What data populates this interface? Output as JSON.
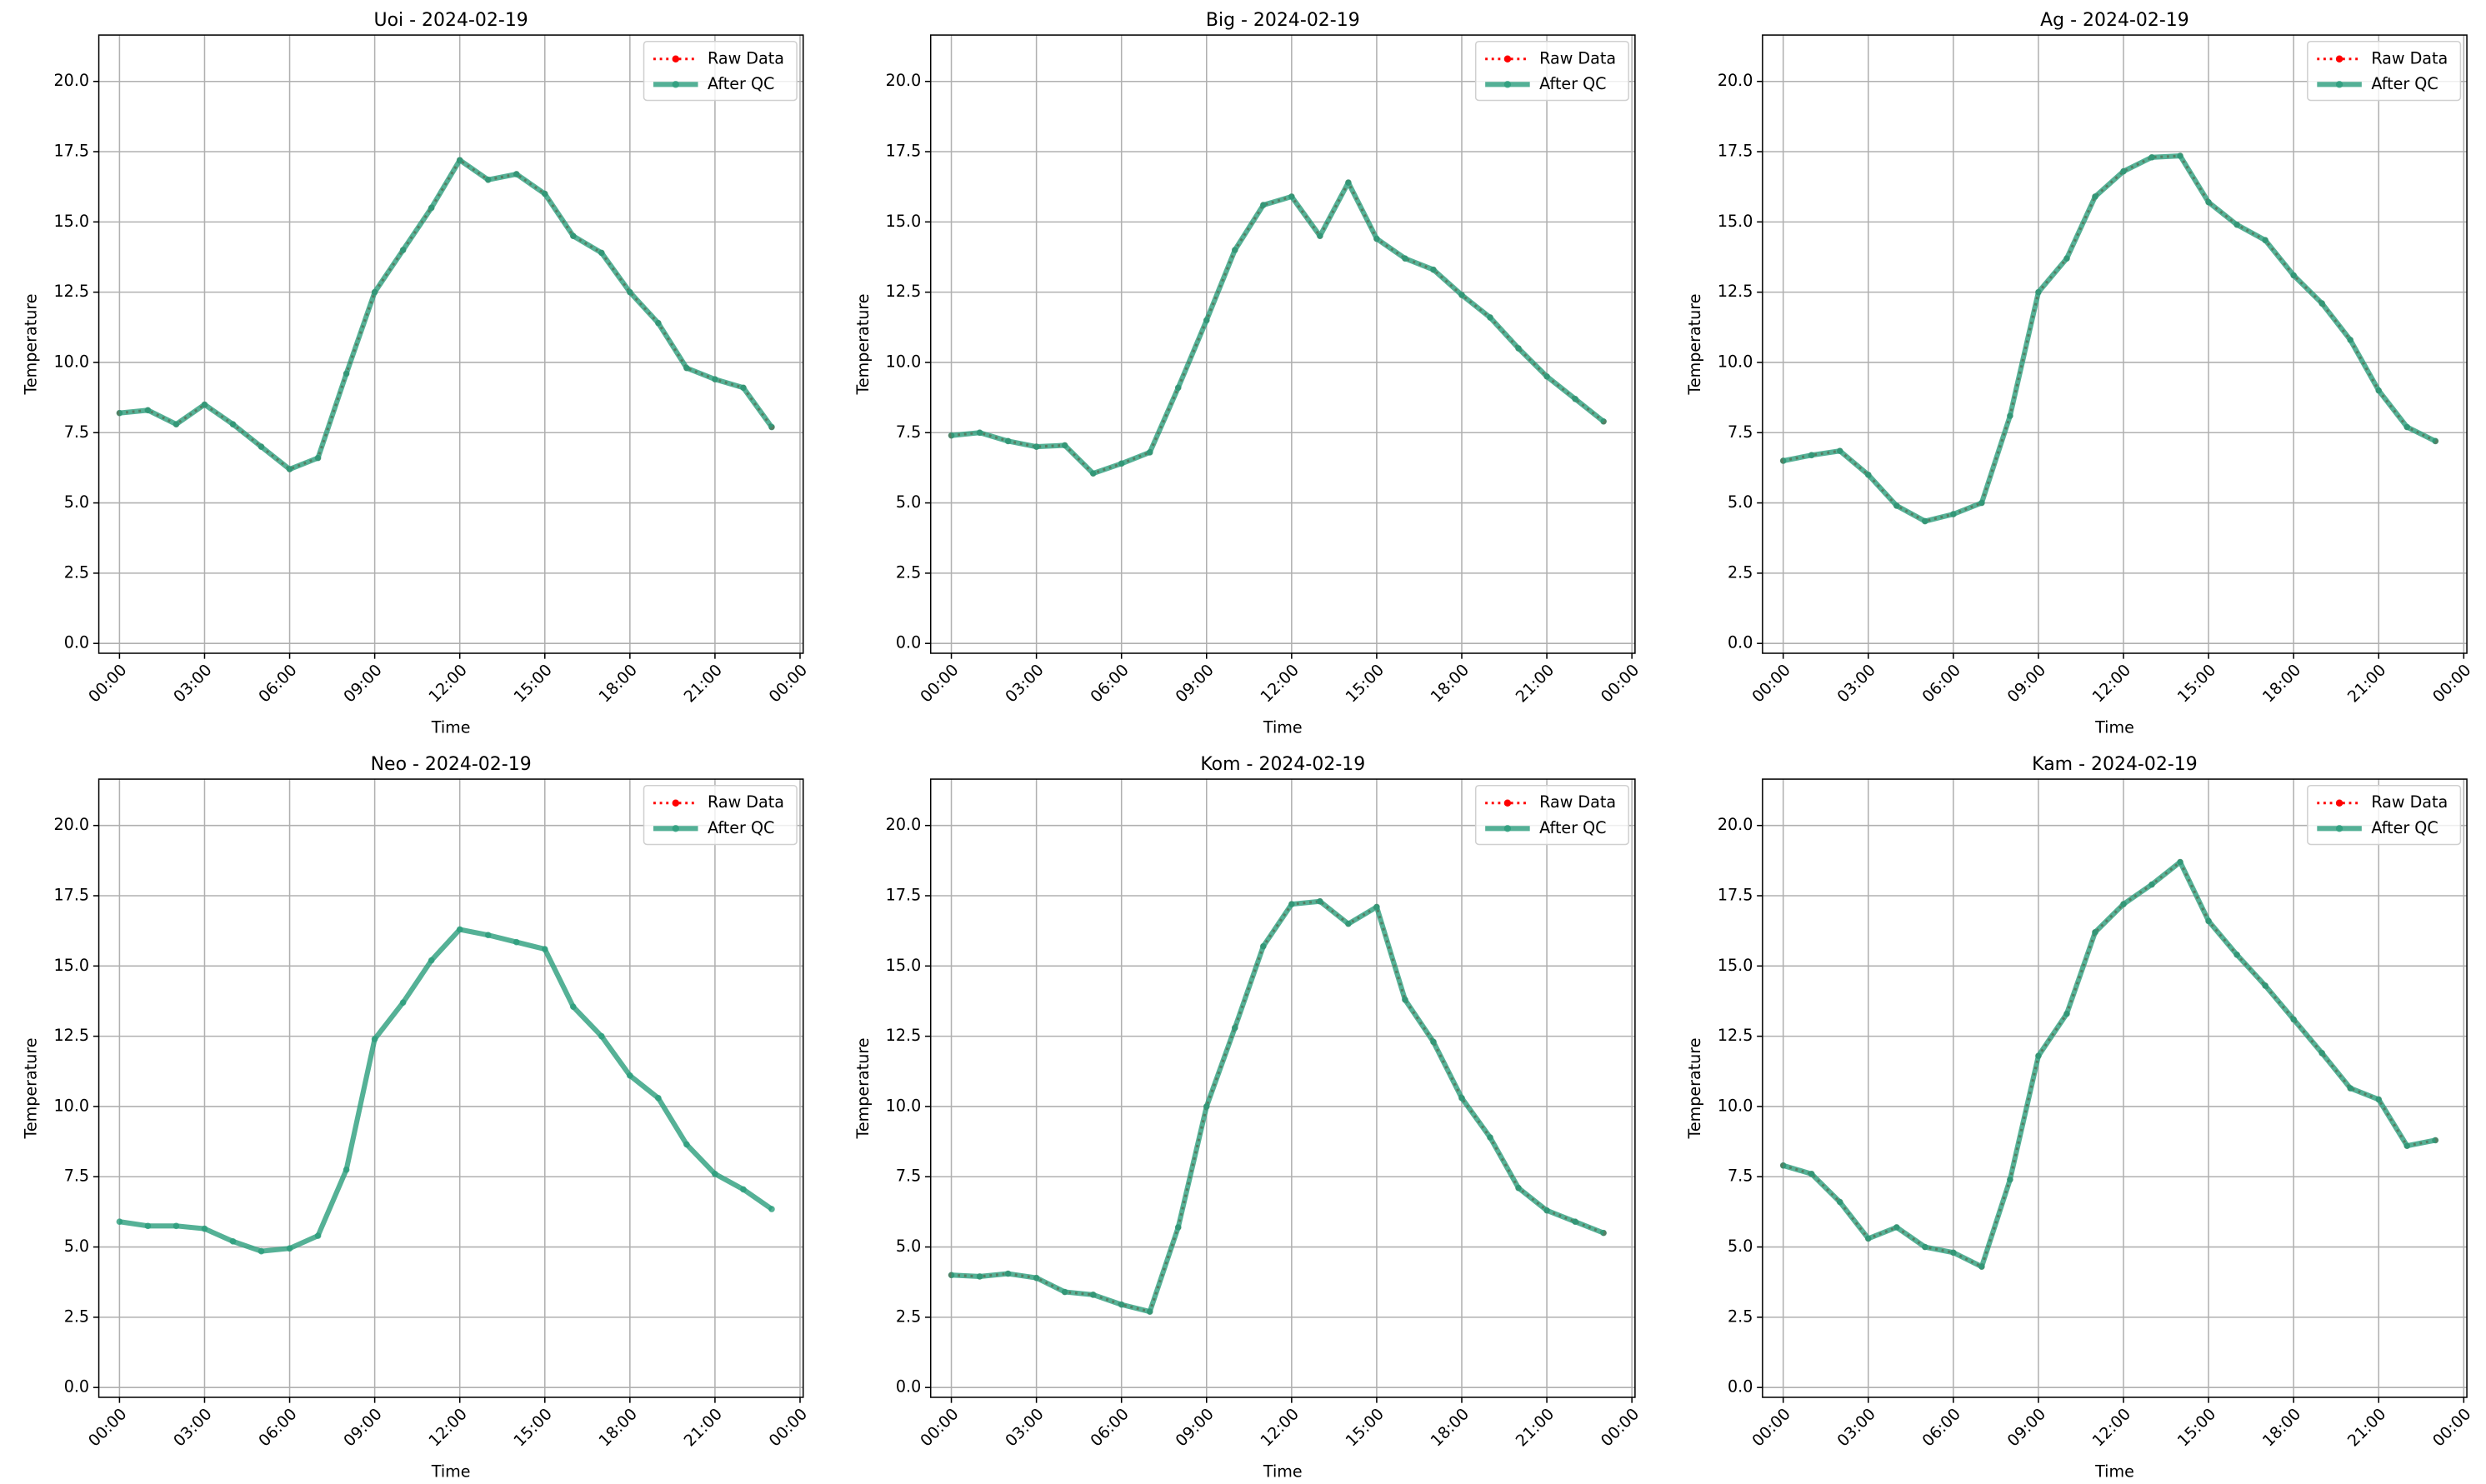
{
  "chart_data": [
    {
      "type": "line",
      "title": "Uoi - 2024-02-19",
      "xlabel": "Time",
      "ylabel": "Temperature",
      "x": [
        0,
        1,
        2,
        3,
        4,
        5,
        6,
        7,
        8,
        9,
        10,
        11,
        12,
        13,
        14,
        15,
        16,
        17,
        18,
        19,
        20,
        21,
        22,
        23
      ],
      "series": [
        {
          "name": "Raw Data",
          "color": "#ff0000",
          "values": [
            8.2,
            8.3,
            7.8,
            8.5,
            7.8,
            7.0,
            6.2,
            6.6,
            9.6,
            12.5,
            14.0,
            15.5,
            17.2,
            16.5,
            16.7,
            16.0,
            14.5,
            13.9,
            12.5,
            11.4,
            9.8,
            9.4,
            9.1,
            7.7
          ]
        },
        {
          "name": "After QC",
          "color": "#2a9d7c",
          "values": [
            8.2,
            8.3,
            7.8,
            8.5,
            7.8,
            7.0,
            6.2,
            6.6,
            9.6,
            12.5,
            14.0,
            15.5,
            17.2,
            16.5,
            16.7,
            16.0,
            14.5,
            13.9,
            12.5,
            11.4,
            9.8,
            9.4,
            9.1,
            7.7
          ]
        }
      ],
      "xlim": [
        -0.73,
        24.11
      ],
      "ylim": [
        -0.35,
        21.65
      ],
      "xticks": [
        {
          "value": 0,
          "label": "00:00"
        },
        {
          "value": 3,
          "label": "03:00"
        },
        {
          "value": 6,
          "label": "06:00"
        },
        {
          "value": 9,
          "label": "09:00"
        },
        {
          "value": 12,
          "label": "12:00"
        },
        {
          "value": 15,
          "label": "15:00"
        },
        {
          "value": 18,
          "label": "18:00"
        },
        {
          "value": 21,
          "label": "21:00"
        },
        {
          "value": 24,
          "label": "00:00"
        }
      ],
      "yticks": [
        {
          "value": 0,
          "label": "0.0"
        },
        2.5,
        {
          "value": 5,
          "label": "5.0"
        },
        7.5,
        {
          "value": 10,
          "label": "10.0"
        },
        12.5,
        {
          "value": 15,
          "label": "15.0"
        },
        17.5,
        {
          "value": 20,
          "label": "20.0"
        }
      ],
      "grid": true,
      "legend": "upper right"
    },
    {
      "type": "line",
      "title": "Big - 2024-02-19",
      "xlabel": "Time",
      "ylabel": "Temperature",
      "x": [
        0,
        1,
        2,
        3,
        4,
        5,
        6,
        7,
        8,
        9,
        10,
        11,
        12,
        13,
        14,
        15,
        16,
        17,
        18,
        19,
        20,
        21,
        22,
        23
      ],
      "series": [
        {
          "name": "Raw Data",
          "color": "#ff0000",
          "values": [
            7.4,
            7.5,
            7.2,
            7.0,
            7.05,
            6.05,
            6.4,
            6.8,
            9.1,
            11.5,
            14.0,
            15.6,
            15.9,
            14.5,
            16.4,
            14.4,
            13.7,
            13.3,
            12.4,
            11.6,
            10.5,
            9.5,
            8.7,
            7.9
          ]
        },
        {
          "name": "After QC",
          "color": "#2a9d7c",
          "values": [
            7.4,
            7.5,
            7.2,
            7.0,
            7.05,
            6.05,
            6.4,
            6.8,
            9.1,
            11.5,
            14.0,
            15.6,
            15.9,
            14.5,
            16.4,
            14.4,
            13.7,
            13.3,
            12.4,
            11.6,
            10.5,
            9.5,
            8.7,
            7.9
          ]
        }
      ],
      "xlim": [
        -0.73,
        24.11
      ],
      "ylim": [
        -0.35,
        21.65
      ],
      "xticks": [
        {
          "value": 0,
          "label": "00:00"
        },
        {
          "value": 3,
          "label": "03:00"
        },
        {
          "value": 6,
          "label": "06:00"
        },
        {
          "value": 9,
          "label": "09:00"
        },
        {
          "value": 12,
          "label": "12:00"
        },
        {
          "value": 15,
          "label": "15:00"
        },
        {
          "value": 18,
          "label": "18:00"
        },
        {
          "value": 21,
          "label": "21:00"
        },
        {
          "value": 24,
          "label": "00:00"
        }
      ],
      "yticks": [
        {
          "value": 0,
          "label": "0.0"
        },
        2.5,
        {
          "value": 5,
          "label": "5.0"
        },
        7.5,
        {
          "value": 10,
          "label": "10.0"
        },
        12.5,
        {
          "value": 15,
          "label": "15.0"
        },
        17.5,
        {
          "value": 20,
          "label": "20.0"
        }
      ],
      "grid": true,
      "legend": "upper right"
    },
    {
      "type": "line",
      "title": "Ag - 2024-02-19",
      "xlabel": "Time",
      "ylabel": "Temperature",
      "x": [
        0,
        1,
        2,
        3,
        4,
        5,
        6,
        7,
        8,
        9,
        10,
        11,
        12,
        13,
        14,
        15,
        16,
        17,
        18,
        19,
        20,
        21,
        22,
        23
      ],
      "series": [
        {
          "name": "Raw Data",
          "color": "#ff0000",
          "values": [
            6.5,
            6.7,
            6.85,
            6.0,
            4.9,
            4.35,
            4.6,
            5.0,
            8.1,
            12.5,
            13.7,
            15.9,
            16.8,
            17.3,
            17.35,
            15.7,
            14.9,
            14.35,
            13.1,
            12.1,
            10.8,
            9.0,
            7.7,
            7.2
          ]
        },
        {
          "name": "After QC",
          "color": "#2a9d7c",
          "values": [
            6.5,
            6.7,
            6.85,
            6.0,
            4.9,
            4.35,
            4.6,
            5.0,
            8.1,
            12.5,
            13.7,
            15.9,
            16.8,
            17.3,
            17.35,
            15.7,
            14.9,
            14.35,
            13.1,
            12.1,
            10.8,
            9.0,
            7.7,
            7.2
          ]
        }
      ],
      "xlim": [
        -0.73,
        24.11
      ],
      "ylim": [
        -0.35,
        21.65
      ],
      "xticks": [
        {
          "value": 0,
          "label": "00:00"
        },
        {
          "value": 3,
          "label": "03:00"
        },
        {
          "value": 6,
          "label": "06:00"
        },
        {
          "value": 9,
          "label": "09:00"
        },
        {
          "value": 12,
          "label": "12:00"
        },
        {
          "value": 15,
          "label": "15:00"
        },
        {
          "value": 18,
          "label": "18:00"
        },
        {
          "value": 21,
          "label": "21:00"
        },
        {
          "value": 24,
          "label": "00:00"
        }
      ],
      "yticks": [
        {
          "value": 0,
          "label": "0.0"
        },
        2.5,
        {
          "value": 5,
          "label": "5.0"
        },
        7.5,
        {
          "value": 10,
          "label": "10.0"
        },
        12.5,
        {
          "value": 15,
          "label": "15.0"
        },
        17.5,
        {
          "value": 20,
          "label": "20.0"
        }
      ],
      "grid": true,
      "legend": "upper right"
    },
    {
      "type": "line",
      "title": "Neo - 2024-02-19",
      "xlabel": "Time",
      "ylabel": "Temperature",
      "x": [
        0,
        1,
        2,
        3,
        4,
        5,
        6,
        7,
        8,
        9,
        10,
        11,
        12,
        13,
        14,
        15,
        16,
        17,
        18,
        19,
        20,
        21,
        22,
        23
      ],
      "series": [
        {
          "name": "Raw Data",
          "color": "#ff0000",
          "values": [
            null,
            null,
            null,
            null,
            null,
            null,
            null,
            null,
            null,
            null,
            null,
            null,
            null,
            null,
            null,
            null,
            null,
            null,
            null,
            null,
            null,
            null,
            null,
            null
          ]
        },
        {
          "name": "After QC",
          "color": "#2a9d7c",
          "values": [
            5.9,
            5.75,
            5.75,
            5.65,
            5.2,
            4.85,
            4.95,
            5.4,
            7.75,
            12.4,
            13.7,
            15.2,
            16.3,
            16.1,
            15.85,
            15.6,
            13.55,
            12.5,
            11.1,
            10.3,
            8.65,
            7.6,
            7.05,
            6.35
          ]
        }
      ],
      "xlim": [
        -0.73,
        24.11
      ],
      "ylim": [
        -0.35,
        21.65
      ],
      "xticks": [
        {
          "value": 0,
          "label": "00:00"
        },
        {
          "value": 3,
          "label": "03:00"
        },
        {
          "value": 6,
          "label": "06:00"
        },
        {
          "value": 9,
          "label": "09:00"
        },
        {
          "value": 12,
          "label": "12:00"
        },
        {
          "value": 15,
          "label": "15:00"
        },
        {
          "value": 18,
          "label": "18:00"
        },
        {
          "value": 21,
          "label": "21:00"
        },
        {
          "value": 24,
          "label": "00:00"
        }
      ],
      "yticks": [
        {
          "value": 0,
          "label": "0.0"
        },
        2.5,
        {
          "value": 5,
          "label": "5.0"
        },
        7.5,
        {
          "value": 10,
          "label": "10.0"
        },
        12.5,
        {
          "value": 15,
          "label": "15.0"
        },
        17.5,
        {
          "value": 20,
          "label": "20.0"
        }
      ],
      "grid": true,
      "legend": "upper right"
    },
    {
      "type": "line",
      "title": "Kom - 2024-02-19",
      "xlabel": "Time",
      "ylabel": "Temperature",
      "x": [
        0,
        1,
        2,
        3,
        4,
        5,
        6,
        7,
        8,
        9,
        10,
        11,
        12,
        13,
        14,
        15,
        16,
        17,
        18,
        19,
        20,
        21,
        22,
        23
      ],
      "series": [
        {
          "name": "Raw Data",
          "color": "#ff0000",
          "values": [
            4.0,
            3.95,
            4.05,
            3.9,
            3.4,
            3.3,
            2.95,
            2.7,
            5.7,
            10.0,
            12.8,
            15.7,
            17.2,
            17.3,
            16.5,
            17.1,
            13.8,
            12.3,
            10.3,
            8.9,
            7.1,
            6.3,
            5.9,
            5.5
          ]
        },
        {
          "name": "After QC",
          "color": "#2a9d7c",
          "values": [
            4.0,
            3.95,
            4.05,
            3.9,
            3.4,
            3.3,
            2.95,
            2.7,
            5.7,
            10.0,
            12.8,
            15.7,
            17.2,
            17.3,
            16.5,
            17.1,
            13.8,
            12.3,
            10.3,
            8.9,
            7.1,
            6.3,
            5.9,
            5.5
          ]
        }
      ],
      "xlim": [
        -0.73,
        24.11
      ],
      "ylim": [
        -0.35,
        21.65
      ],
      "xticks": [
        {
          "value": 0,
          "label": "00:00"
        },
        {
          "value": 3,
          "label": "03:00"
        },
        {
          "value": 6,
          "label": "06:00"
        },
        {
          "value": 9,
          "label": "09:00"
        },
        {
          "value": 12,
          "label": "12:00"
        },
        {
          "value": 15,
          "label": "15:00"
        },
        {
          "value": 18,
          "label": "18:00"
        },
        {
          "value": 21,
          "label": "21:00"
        },
        {
          "value": 24,
          "label": "00:00"
        }
      ],
      "yticks": [
        {
          "value": 0,
          "label": "0.0"
        },
        2.5,
        {
          "value": 5,
          "label": "5.0"
        },
        7.5,
        {
          "value": 10,
          "label": "10.0"
        },
        12.5,
        {
          "value": 15,
          "label": "15.0"
        },
        17.5,
        {
          "value": 20,
          "label": "20.0"
        }
      ],
      "grid": true,
      "legend": "upper right"
    },
    {
      "type": "line",
      "title": "Kam - 2024-02-19",
      "xlabel": "Time",
      "ylabel": "Temperature",
      "x": [
        0,
        1,
        2,
        3,
        4,
        5,
        6,
        7,
        8,
        9,
        10,
        11,
        12,
        13,
        14,
        15,
        16,
        17,
        18,
        19,
        20,
        21,
        22,
        23
      ],
      "series": [
        {
          "name": "Raw Data",
          "color": "#ff0000",
          "values": [
            7.9,
            7.6,
            6.6,
            5.3,
            5.7,
            5.0,
            4.8,
            4.3,
            7.4,
            11.8,
            13.3,
            16.2,
            17.2,
            17.9,
            18.7,
            16.6,
            15.4,
            14.3,
            13.1,
            11.9,
            10.65,
            10.25,
            8.6,
            8.8
          ]
        },
        {
          "name": "After QC",
          "color": "#2a9d7c",
          "values": [
            7.9,
            7.6,
            6.6,
            5.3,
            5.7,
            5.0,
            4.8,
            4.3,
            7.4,
            11.8,
            13.3,
            16.2,
            17.2,
            17.9,
            18.7,
            16.6,
            15.4,
            14.3,
            13.1,
            11.9,
            10.65,
            10.25,
            8.6,
            8.8
          ]
        }
      ],
      "xlim": [
        -0.73,
        24.11
      ],
      "ylim": [
        -0.35,
        21.65
      ],
      "xticks": [
        {
          "value": 0,
          "label": "00:00"
        },
        {
          "value": 3,
          "label": "03:00"
        },
        {
          "value": 6,
          "label": "06:00"
        },
        {
          "value": 9,
          "label": "09:00"
        },
        {
          "value": 12,
          "label": "12:00"
        },
        {
          "value": 15,
          "label": "15:00"
        },
        {
          "value": 18,
          "label": "18:00"
        },
        {
          "value": 21,
          "label": "21:00"
        },
        {
          "value": 24,
          "label": "00:00"
        }
      ],
      "yticks": [
        {
          "value": 0,
          "label": "0.0"
        },
        2.5,
        {
          "value": 5,
          "label": "5.0"
        },
        7.5,
        {
          "value": 10,
          "label": "10.0"
        },
        12.5,
        {
          "value": 15,
          "label": "15.0"
        },
        17.5,
        {
          "value": 20,
          "label": "20.0"
        }
      ],
      "grid": true,
      "legend": "upper right"
    }
  ]
}
